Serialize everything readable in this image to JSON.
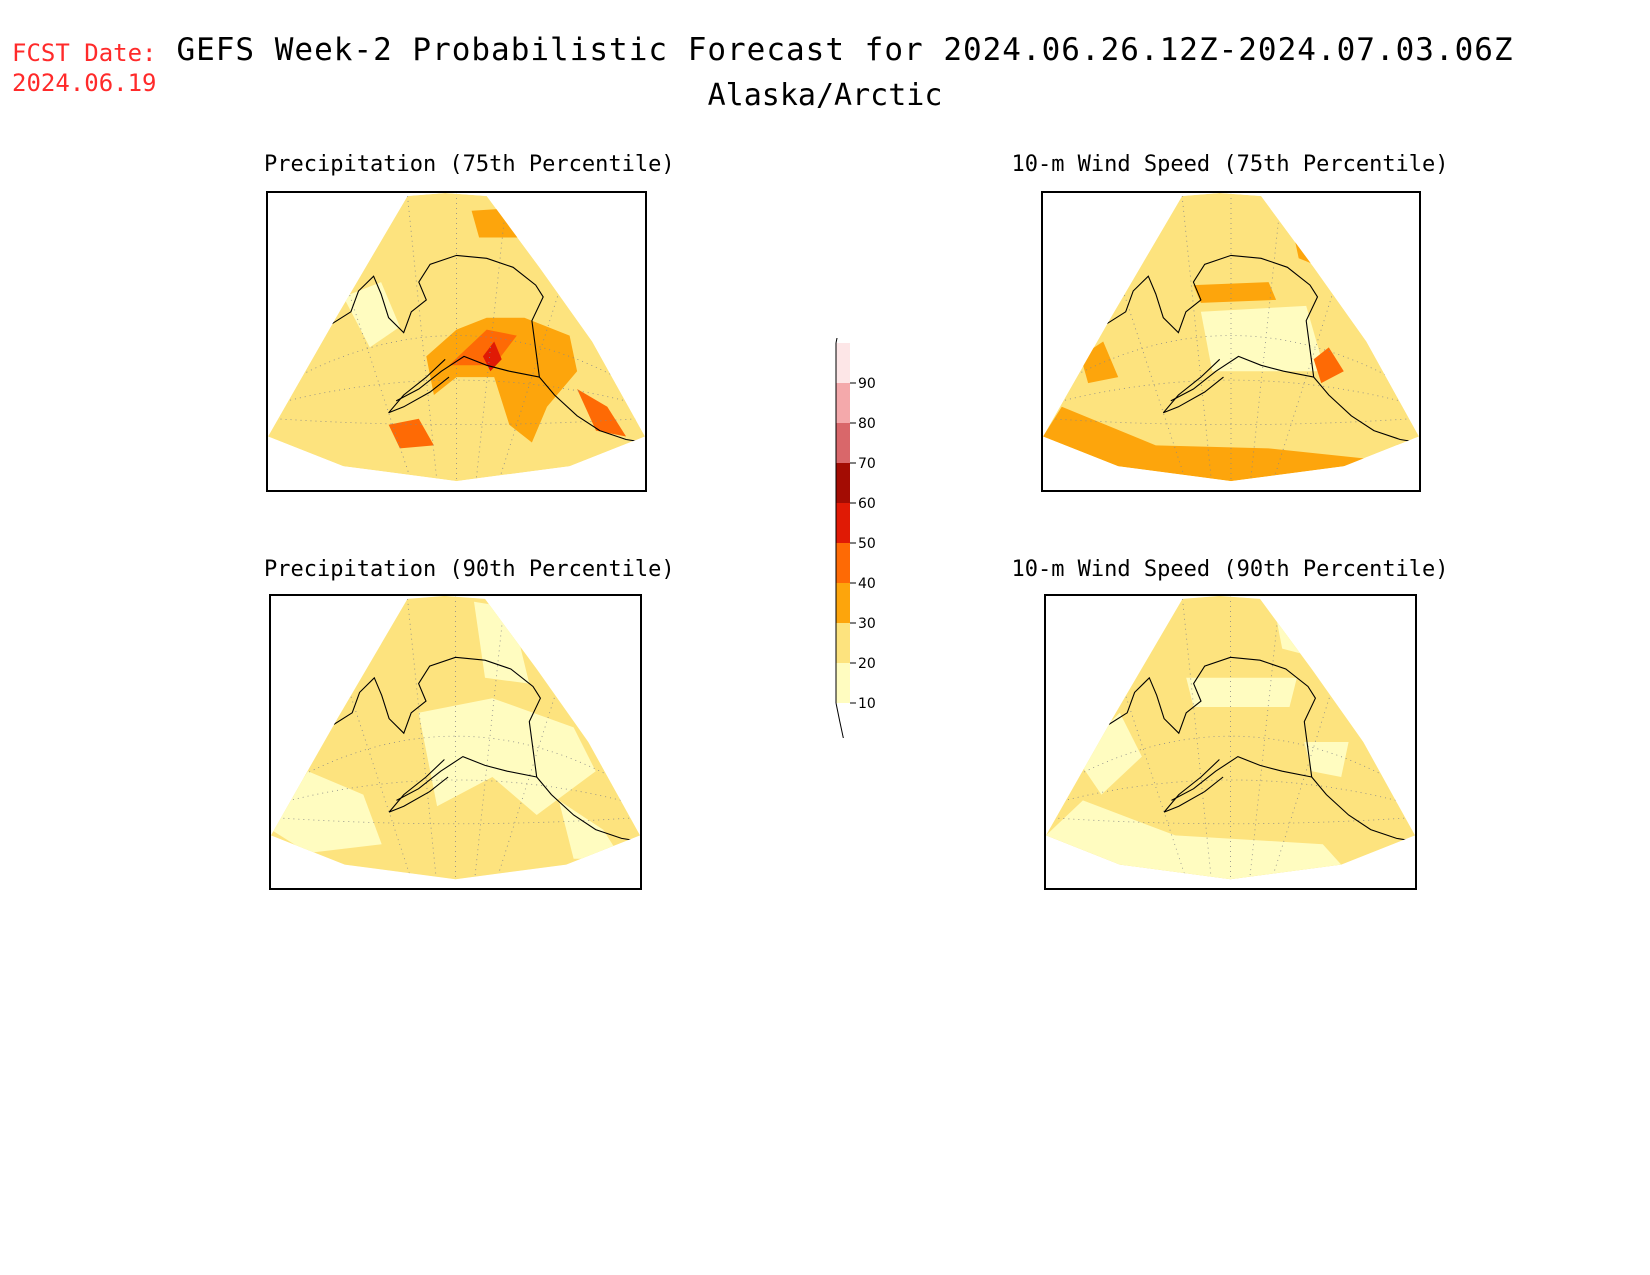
{
  "header": {
    "fcst_label": "FCST Date:",
    "fcst_date": "2024.06.19",
    "title": "GEFS Week-2 Probabilistic Forecast for 2024.06.26.12Z-2024.07.03.06Z",
    "subtitle": "Alaska/Arctic"
  },
  "panels": [
    {
      "id": "precip75",
      "title": "Precipitation (75th Percentile)",
      "dominant_level": 20
    },
    {
      "id": "wind75",
      "title": "10-m Wind Speed (75th Percentile)",
      "dominant_level": 20
    },
    {
      "id": "precip90",
      "title": "Precipitation (90th Percentile)",
      "dominant_level": 10
    },
    {
      "id": "wind90",
      "title": "10-m Wind Speed (90th Percentile)",
      "dominant_level": 10
    }
  ],
  "legend": {
    "units": "%",
    "levels": [
      10,
      20,
      30,
      40,
      50,
      60,
      70,
      80,
      90
    ],
    "labels": [
      "10",
      "20",
      "30",
      "40",
      "50",
      "60",
      "70",
      "80",
      "90"
    ],
    "colors": [
      "#fffcc0",
      "#fde37e",
      "#fda50c",
      "#fe6a05",
      "#e01a05",
      "#a30c03",
      "#d9676a",
      "#f4a9ab",
      "#fde6e7"
    ]
  },
  "colors": {
    "fcst_text": "#ff2a2a",
    "background": "#ffffff",
    "coastline": "#000000"
  }
}
